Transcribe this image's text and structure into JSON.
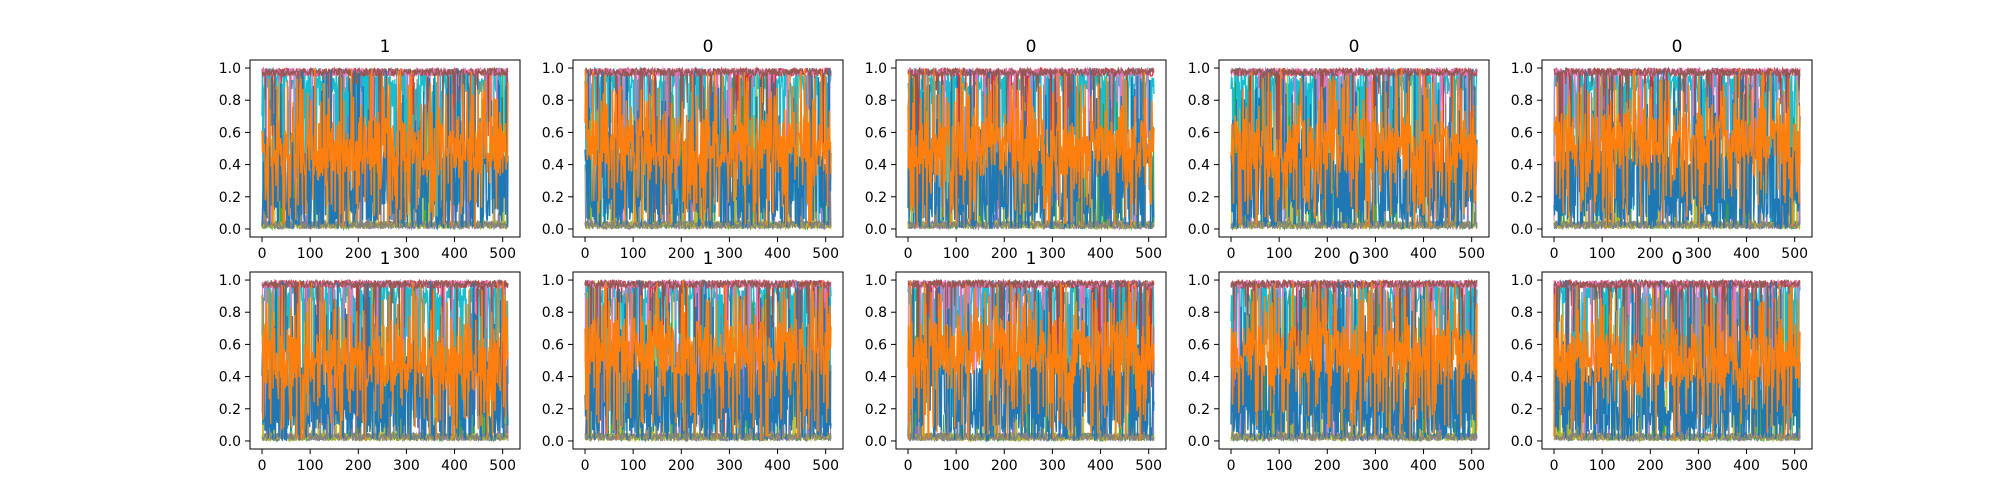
{
  "chart_data": {
    "type": "line",
    "layout": {
      "rows": 2,
      "cols": 5
    },
    "x_range": [
      0,
      511
    ],
    "xlim": [
      -25,
      536
    ],
    "ylim": [
      -0.05,
      1.05
    ],
    "xticks": [
      0,
      100,
      200,
      300,
      400,
      500
    ],
    "yticks": [
      0.0,
      0.2,
      0.4,
      0.6,
      0.8,
      1.0
    ],
    "ytick_labels": [
      "0.0",
      "0.2",
      "0.4",
      "0.6",
      "0.8",
      "1.0"
    ],
    "grid": false,
    "colors": {
      "cyan": "#17becf",
      "blue": "#1f77b4",
      "orange": "#ff7f0e",
      "minor": [
        "#2ca02c",
        "#d62728",
        "#9467bd",
        "#e377c2",
        "#bcbd22",
        "#8c564b",
        "#7f7f7f"
      ]
    },
    "panels": [
      {
        "title": "1",
        "cyan_mean": 0.92,
        "blue_mean": 0.28,
        "orange_mean": 0.5
      },
      {
        "title": "0",
        "cyan_mean": 0.93,
        "blue_mean": 0.3,
        "orange_mean": 0.52
      },
      {
        "title": "0",
        "cyan_mean": 0.92,
        "blue_mean": 0.3,
        "orange_mean": 0.5
      },
      {
        "title": "0",
        "cyan_mean": 0.93,
        "blue_mean": 0.3,
        "orange_mean": 0.52
      },
      {
        "title": "0",
        "cyan_mean": 0.92,
        "blue_mean": 0.28,
        "orange_mean": 0.55
      },
      {
        "title": "1",
        "cyan_mean": 0.93,
        "blue_mean": 0.3,
        "orange_mean": 0.48
      },
      {
        "title": "1",
        "cyan_mean": 0.93,
        "blue_mean": 0.28,
        "orange_mean": 0.58
      },
      {
        "title": "1",
        "cyan_mean": 0.92,
        "blue_mean": 0.28,
        "orange_mean": 0.58
      },
      {
        "title": "0",
        "cyan_mean": 0.93,
        "blue_mean": 0.3,
        "orange_mean": 0.55
      },
      {
        "title": "0",
        "cyan_mean": 0.92,
        "blue_mean": 0.3,
        "orange_mean": 0.5
      }
    ]
  }
}
